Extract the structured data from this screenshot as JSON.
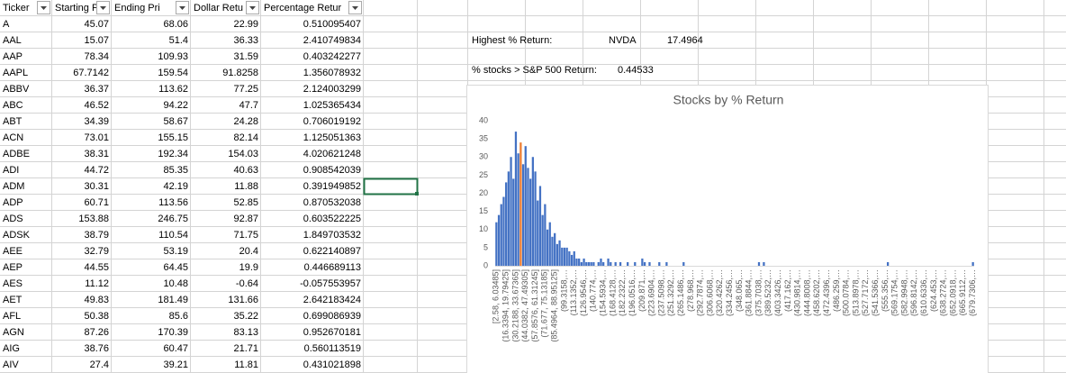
{
  "table": {
    "columns": [
      "Ticker",
      "Starting Pr",
      "Ending Pri",
      "Dollar Retu",
      "Percentage Retur"
    ],
    "rows": [
      [
        "A",
        "45.07",
        "68.06",
        "22.99",
        "0.510095407"
      ],
      [
        "AAL",
        "15.07",
        "51.4",
        "36.33",
        "2.410749834"
      ],
      [
        "AAP",
        "78.34",
        "109.93",
        "31.59",
        "0.403242277"
      ],
      [
        "AAPL",
        "67.7142",
        "159.54",
        "91.8258",
        "1.356078932"
      ],
      [
        "ABBV",
        "36.37",
        "113.62",
        "77.25",
        "2.124003299"
      ],
      [
        "ABC",
        "46.52",
        "94.22",
        "47.7",
        "1.025365434"
      ],
      [
        "ABT",
        "34.39",
        "58.67",
        "24.28",
        "0.706019192"
      ],
      [
        "ACN",
        "73.01",
        "155.15",
        "82.14",
        "1.125051363"
      ],
      [
        "ADBE",
        "38.31",
        "192.34",
        "154.03",
        "4.020621248"
      ],
      [
        "ADI",
        "44.72",
        "85.35",
        "40.63",
        "0.908542039"
      ],
      [
        "ADM",
        "30.31",
        "42.19",
        "11.88",
        "0.391949852"
      ],
      [
        "ADP",
        "60.71",
        "113.56",
        "52.85",
        "0.870532038"
      ],
      [
        "ADS",
        "153.88",
        "246.75",
        "92.87",
        "0.603522225"
      ],
      [
        "ADSK",
        "38.79",
        "110.54",
        "71.75",
        "1.849703532"
      ],
      [
        "AEE",
        "32.79",
        "53.19",
        "20.4",
        "0.622140897"
      ],
      [
        "AEP",
        "44.55",
        "64.45",
        "19.9",
        "0.446689113"
      ],
      [
        "AES",
        "11.12",
        "10.48",
        "-0.64",
        "-0.057553957"
      ],
      [
        "AET",
        "49.83",
        "181.49",
        "131.66",
        "2.642183424"
      ],
      [
        "AFL",
        "50.38",
        "85.6",
        "35.22",
        "0.699086939"
      ],
      [
        "AGN",
        "87.26",
        "170.39",
        "83.13",
        "0.952670181"
      ],
      [
        "AIG",
        "38.76",
        "60.47",
        "21.71",
        "0.560113519"
      ],
      [
        "AIV",
        "27.4",
        "39.21",
        "11.81",
        "0.431021898"
      ]
    ]
  },
  "summary": {
    "highest_label": "Highest % Return:",
    "highest_ticker": "NVDA",
    "highest_value": "17.4964",
    "beat_label": "% stocks > S&P 500 Return:",
    "beat_value": "0.44533"
  },
  "chart_data": {
    "type": "bar",
    "title": "Stocks by % Return",
    "color": "#4472c4",
    "highlight": {
      "index": 10,
      "color": "#ed7d31"
    },
    "ylim": [
      0,
      40
    ],
    "yticks": [
      0,
      5,
      10,
      15,
      20,
      25,
      30,
      35,
      40
    ],
    "grid": false,
    "categories": [
      "[2.58, 6.03485]",
      null,
      null,
      null,
      "(16.3394, 19.79425]",
      null,
      null,
      null,
      "(30.2188, 33.67365]",
      null,
      null,
      null,
      "(44.0382, 47.49305]",
      null,
      null,
      null,
      "(57.8576, 61.31245]",
      null,
      null,
      null,
      "(71.677, 75.13185]",
      null,
      null,
      null,
      "(85.4964, 88.95125]",
      null,
      null,
      null,
      "(99.3158,…",
      null,
      null,
      null,
      "(113.1352,…",
      null,
      null,
      null,
      "(126.9546,…",
      null,
      null,
      null,
      "(140.774,…",
      null,
      null,
      null,
      "(154.5934,…",
      null,
      null,
      null,
      "(168.4128,…",
      null,
      null,
      null,
      "(182.2322,…",
      null,
      null,
      null,
      "(196.0516,…",
      null,
      null,
      null,
      "(209.871,…",
      null,
      null,
      null,
      "(223.6904,…",
      null,
      null,
      null,
      "(237.5098,…",
      null,
      null,
      null,
      "(251.3292,…",
      null,
      null,
      null,
      "(265.1486,…",
      null,
      null,
      null,
      "(278.968,…",
      null,
      null,
      null,
      "(292.7874,…",
      null,
      null,
      null,
      "(306.6068,…",
      null,
      null,
      null,
      "(320.4262,…",
      null,
      null,
      null,
      "(334.2456,…",
      null,
      null,
      null,
      "(348.065,…",
      null,
      null,
      null,
      "(361.8844,…",
      null,
      null,
      null,
      "(375.7038,…",
      null,
      null,
      null,
      "(389.5232,…",
      null,
      null,
      null,
      "(403.3426,…",
      null,
      null,
      null,
      "(417.162,…",
      null,
      null,
      null,
      "(430.9814,…",
      null,
      null,
      null,
      "(444.8008,…",
      null,
      null,
      null,
      "(458.6202,…",
      null,
      null,
      null,
      "(472.4396,…",
      null,
      null,
      null,
      "(486.259,…",
      null,
      null,
      null,
      "(500.0784,…",
      null,
      null,
      null,
      "(513.8978,…",
      null,
      null,
      null,
      "(527.7172,…",
      null,
      null,
      null,
      "(541.5366,…",
      null,
      null,
      null,
      "(555.356,…",
      null,
      null,
      null,
      "(569.1754,…",
      null,
      null,
      null,
      "(582.9948,…",
      null,
      null,
      null,
      "(596.8142,…",
      null,
      null,
      null,
      "(610.6336,…",
      null,
      null,
      null,
      "(624.453,…",
      null,
      null,
      null,
      "(638.2724,…",
      null,
      null,
      null,
      "(652.0918,…",
      null,
      null,
      null,
      "(665.9112,…",
      null,
      null,
      null,
      "(679.7306,…"
    ],
    "values": [
      12,
      14,
      17,
      19,
      23,
      26,
      30,
      24,
      37,
      31,
      34,
      28,
      33,
      27,
      24,
      30,
      26,
      18,
      22,
      14,
      17,
      10,
      12,
      8,
      9,
      6,
      7,
      5,
      5,
      5,
      4,
      3,
      4,
      2,
      2,
      1,
      2,
      1,
      1,
      1,
      1,
      0,
      1,
      2,
      1,
      0,
      2,
      1,
      0,
      1,
      0,
      1,
      0,
      0,
      1,
      0,
      0,
      1,
      0,
      0,
      2,
      1,
      0,
      1,
      0,
      0,
      0,
      1,
      0,
      0,
      1,
      0,
      0,
      0,
      0,
      0,
      0,
      1,
      0,
      0,
      0,
      0,
      0,
      0,
      0,
      0,
      0,
      0,
      0,
      0,
      0,
      0,
      0,
      0,
      0,
      0,
      0,
      0,
      0,
      0,
      0,
      0,
      0,
      0,
      0,
      0,
      0,
      0,
      1,
      0,
      1,
      0,
      0,
      0,
      0,
      0,
      0,
      0,
      0,
      0,
      0,
      0,
      0,
      0,
      0,
      0,
      0,
      0,
      0,
      0,
      0,
      0,
      0,
      0,
      0,
      0,
      0,
      0,
      0,
      0,
      0,
      0,
      0,
      0,
      0,
      0,
      0,
      0,
      0,
      0,
      0,
      0,
      0,
      0,
      0,
      0,
      0,
      0,
      0,
      0,
      0,
      1,
      0,
      0,
      0,
      0,
      0,
      0,
      0,
      0,
      0,
      0,
      0,
      0,
      0,
      0,
      0,
      0,
      0,
      0,
      0,
      0,
      0,
      0,
      0,
      0,
      0,
      0,
      0,
      0,
      0,
      0,
      0,
      0,
      0,
      0,
      1
    ]
  }
}
